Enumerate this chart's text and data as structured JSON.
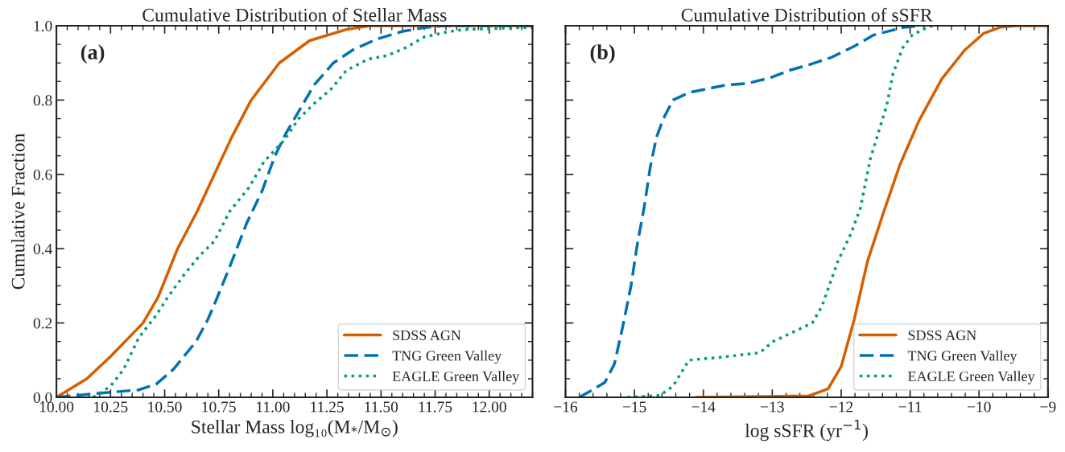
{
  "chart_data": [
    {
      "type": "line",
      "title": "Cumulative Distribution of Stellar Mass",
      "xlabel": "Stellar Mass log₁₀(M$_{*}$/M$_{⊙}$)",
      "ylabel": "Cumulative Fraction",
      "annotations": [
        "(a)"
      ],
      "xlim": [
        10.0,
        12.2
      ],
      "xticks": [
        {
          "value": 10.0,
          "label": "10.00"
        },
        {
          "value": 10.25,
          "label": "10.25"
        },
        {
          "value": 10.5,
          "label": "10.50"
        },
        {
          "value": 10.75,
          "label": "10.75"
        },
        {
          "value": 11.0,
          "label": "11.00"
        },
        {
          "value": 11.25,
          "label": "11.25"
        },
        {
          "value": 11.5,
          "label": "11.50"
        },
        {
          "value": 11.75,
          "label": "11.75"
        },
        {
          "value": 12.0,
          "label": "12.00"
        }
      ],
      "ylim": [
        0,
        1
      ],
      "yticks": [
        {
          "value": 0,
          "label": "0.0"
        },
        0.2,
        0.4,
        0.6,
        0.8,
        {
          "value": 1,
          "label": "1.0"
        }
      ],
      "legend": "bottom right",
      "grid": false,
      "series": [
        {
          "name": "SDSS AGN",
          "color": "#d55e00",
          "line_style": "solid",
          "x": [
            10.0,
            10.14,
            10.25,
            10.4,
            10.47,
            10.56,
            10.65,
            10.73,
            10.81,
            10.9,
            11.03,
            11.17,
            11.34,
            11.45,
            12.2
          ],
          "values": [
            0,
            0.05,
            0.11,
            0.2,
            0.27,
            0.4,
            0.5,
            0.6,
            0.7,
            0.8,
            0.9,
            0.96,
            0.99,
            1.0,
            1.0
          ]
        },
        {
          "name": "TNG Green Valley",
          "color": "#0072b2",
          "line_style": "dashed",
          "x": [
            10.0,
            10.18,
            10.38,
            10.46,
            10.54,
            10.645,
            10.7,
            10.73,
            10.8,
            10.88,
            10.95,
            11.01,
            11.06,
            11.12,
            11.19,
            11.28,
            11.37,
            11.48,
            11.6,
            11.7,
            11.79,
            12.2
          ],
          "values": [
            0.0,
            0.01,
            0.02,
            0.035,
            0.075,
            0.15,
            0.21,
            0.25,
            0.35,
            0.47,
            0.555,
            0.65,
            0.71,
            0.77,
            0.84,
            0.9,
            0.935,
            0.964,
            0.985,
            0.995,
            1.0,
            1.0
          ]
        },
        {
          "name": "EAGLE Green Valley",
          "color": "#009e73",
          "line_style": "dotted",
          "x": [
            10.17,
            10.25,
            10.31,
            10.38,
            10.46,
            10.515,
            10.59,
            10.66,
            10.73,
            10.8,
            10.89,
            10.96,
            11.05,
            11.12,
            11.19,
            11.27,
            11.34,
            11.44,
            11.53,
            11.61,
            11.7,
            11.82,
            11.89,
            12.14,
            12.2
          ],
          "values": [
            0.0,
            0.03,
            0.075,
            0.16,
            0.22,
            0.27,
            0.33,
            0.38,
            0.42,
            0.5,
            0.565,
            0.635,
            0.69,
            0.75,
            0.79,
            0.83,
            0.88,
            0.91,
            0.92,
            0.94,
            0.97,
            0.985,
            0.99,
            0.995,
            0.995
          ]
        }
      ]
    },
    {
      "type": "line",
      "title": "Cumulative Distribution of sSFR",
      "xlabel": "log sSFR (yr$^{−1}$)",
      "annotations": [
        "(b)"
      ],
      "xlim": [
        -16,
        -9
      ],
      "xticks": [
        {
          "value": -16,
          "label": "−16"
        },
        {
          "value": -15,
          "label": "−15"
        },
        {
          "value": -14,
          "label": "−14"
        },
        {
          "value": -13,
          "label": "−13"
        },
        {
          "value": -12,
          "label": "−12"
        },
        {
          "value": -11,
          "label": "−11"
        },
        {
          "value": -10,
          "label": "−10"
        },
        {
          "value": -9,
          "label": "−9"
        }
      ],
      "ylim": [
        0,
        1
      ],
      "yticks": [
        {
          "value": 0,
          "label": null
        },
        {
          "value": 0.2,
          "label": null
        },
        {
          "value": 0.4,
          "label": null
        },
        {
          "value": 0.6,
          "label": null
        },
        {
          "value": 0.8,
          "label": null
        },
        {
          "value": 1,
          "label": null
        }
      ],
      "tick_labels": "x",
      "legend": "bottom right",
      "grid": false,
      "series": [
        {
          "name": "SDSS AGN",
          "color": "#d55e00",
          "line_style": "solid",
          "x": [
            -14.11,
            -12.47,
            -12.19,
            -12.0,
            -11.81,
            -11.62,
            -11.39,
            -11.15,
            -10.87,
            -10.54,
            -10.21,
            -9.93,
            -9.69,
            -9.46,
            -9.0
          ],
          "values": [
            0.0,
            0.004,
            0.023,
            0.083,
            0.21,
            0.365,
            0.495,
            0.625,
            0.745,
            0.857,
            0.934,
            0.98,
            0.996,
            1.0,
            1.0
          ]
        },
        {
          "name": "TNG Green Valley",
          "color": "#0072b2",
          "line_style": "dashed",
          "x": [
            -15.8,
            -15.61,
            -15.43,
            -15.29,
            -15.17,
            -15.05,
            -14.96,
            -14.86,
            -14.77,
            -14.68,
            -14.58,
            -14.44,
            -14.21,
            -13.69,
            -13.36,
            -13.03,
            -12.75,
            -12.47,
            -12.14,
            -11.81,
            -11.53,
            -11.11,
            -10.87
          ],
          "values": [
            0.0,
            0.02,
            0.04,
            0.09,
            0.19,
            0.3,
            0.41,
            0.51,
            0.62,
            0.7,
            0.75,
            0.8,
            0.82,
            0.84,
            0.845,
            0.86,
            0.88,
            0.895,
            0.915,
            0.945,
            0.975,
            0.995,
            1.0
          ]
        },
        {
          "name": "EAGLE Green Valley",
          "color": "#009e73",
          "line_style": "dotted",
          "x": [
            -15.1,
            -14.63,
            -14.44,
            -14.21,
            -13.79,
            -13.18,
            -12.99,
            -12.42,
            -12.28,
            -12.05,
            -11.86,
            -11.72,
            -11.58,
            -11.44,
            -11.34,
            -11.25,
            -11.11,
            -10.97,
            -10.73,
            -10.59
          ],
          "values": [
            0.0,
            0.005,
            0.03,
            0.1,
            0.107,
            0.12,
            0.15,
            0.2,
            0.245,
            0.365,
            0.44,
            0.51,
            0.64,
            0.725,
            0.785,
            0.87,
            0.94,
            0.975,
            0.998,
            1.0
          ]
        }
      ]
    }
  ]
}
